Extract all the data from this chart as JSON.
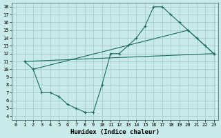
{
  "bg_color": "#c8eae8",
  "grid_color": "#a0c8c4",
  "line_color": "#1a6b5a",
  "xlabel": "Humidex (Indice chaleur)",
  "xlim": [
    -0.5,
    23.5
  ],
  "ylim": [
    3.5,
    18.5
  ],
  "xticks": [
    0,
    1,
    2,
    3,
    4,
    5,
    6,
    7,
    8,
    9,
    10,
    11,
    12,
    13,
    14,
    15,
    16,
    17,
    18,
    19,
    20,
    21,
    22,
    23
  ],
  "yticks": [
    4,
    5,
    6,
    7,
    8,
    9,
    10,
    11,
    12,
    13,
    14,
    15,
    16,
    17,
    18
  ],
  "curve_x": [
    1,
    2,
    3,
    4,
    5,
    6,
    7,
    8,
    9,
    10,
    11,
    12,
    13,
    14,
    15,
    16,
    17,
    18,
    19,
    20,
    21,
    22,
    23
  ],
  "curve_y": [
    11,
    10,
    7,
    7,
    6.5,
    5.5,
    5,
    4.5,
    4.5,
    8,
    12,
    12,
    13,
    14,
    15.5,
    18,
    18,
    17,
    16,
    15,
    14,
    13,
    12
  ],
  "line1_x": [
    1,
    23
  ],
  "line1_y": [
    11,
    12
  ],
  "line2_x": [
    2,
    20,
    23
  ],
  "line2_y": [
    10,
    15,
    12
  ]
}
